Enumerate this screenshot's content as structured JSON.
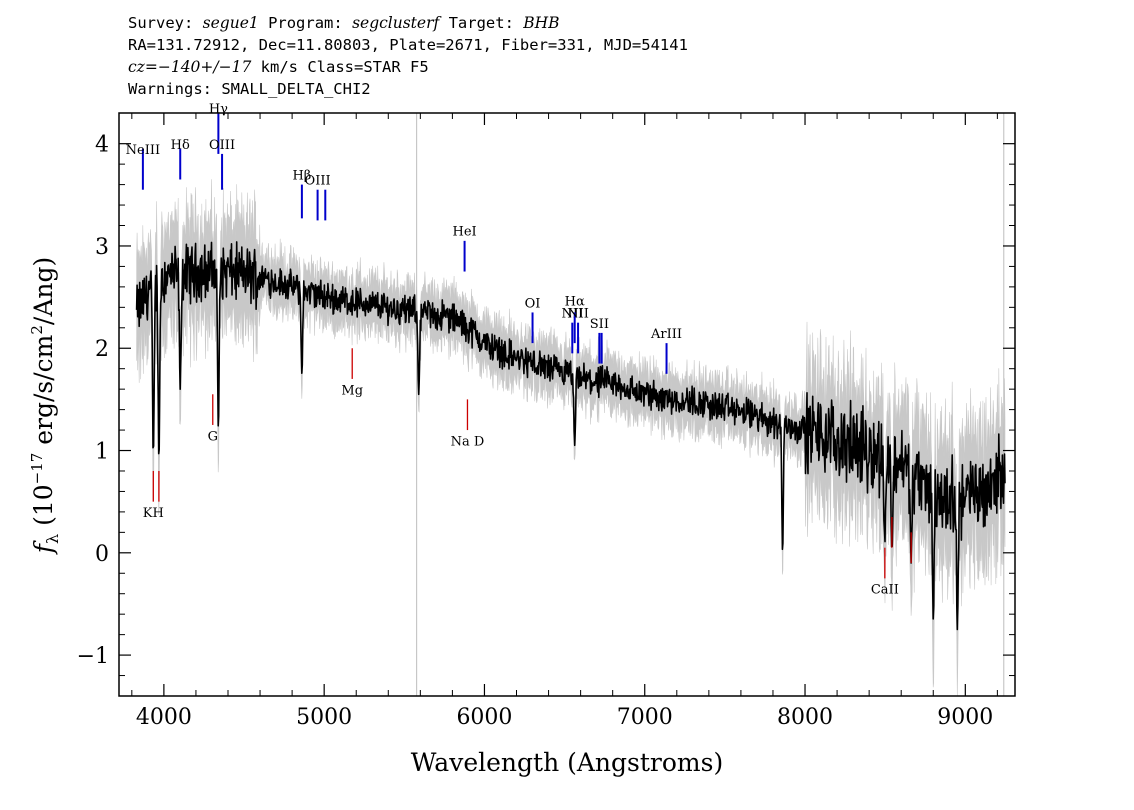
{
  "header": {
    "line1_a": "Survey: ",
    "survey": "segue1",
    "line1_b": " Program: ",
    "program": "segclusterf",
    "line1_c": " Target: ",
    "target": "BHB",
    "line2": "RA=131.72912, Dec=11.80803, Plate=2671, Fiber=331, MJD=54141",
    "line3_a": "cz=",
    "cz": "−140+/−17",
    "line3_b": " km/s Class=STAR F5",
    "line4": "Warnings: SMALL_DELTA_CHI2"
  },
  "chart_data": {
    "type": "line",
    "xlabel": "Wavelength (Angstroms)",
    "ylabel_prefix": "f",
    "ylabel_sub": "λ",
    "ylabel_main": " (10",
    "ylabel_exp": "−17",
    "ylabel_mid": " erg/s/cm",
    "ylabel_exp2": "2",
    "ylabel_end": "/Ang)",
    "xlim": [
      3720,
      9310
    ],
    "ylim": [
      -1.4,
      4.3
    ],
    "xticks": [
      4000,
      5000,
      6000,
      7000,
      8000,
      9000
    ],
    "xtick_labels": [
      "4000",
      "5000",
      "6000",
      "7000",
      "8000",
      "9000"
    ],
    "yticks": [
      -1,
      0,
      1,
      2,
      3,
      4
    ],
    "ytick_labels": [
      "−1",
      "0",
      "1",
      "2",
      "3",
      "4"
    ],
    "continuum": {
      "x": [
        3830,
        3900,
        4000,
        4200,
        4400,
        4600,
        4800,
        5000,
        5200,
        5400,
        5600,
        5800,
        5900,
        6000,
        6200,
        6400,
        6600,
        6800,
        7000,
        7200,
        7400,
        7600,
        7800,
        8000,
        8200,
        8400,
        8600,
        8800,
        9000,
        9100,
        9200
      ],
      "y": [
        2.35,
        2.55,
        2.7,
        2.75,
        2.75,
        2.7,
        2.6,
        2.5,
        2.45,
        2.4,
        2.35,
        2.3,
        2.2,
        2.05,
        1.9,
        1.8,
        1.7,
        1.65,
        1.55,
        1.5,
        1.45,
        1.38,
        1.28,
        1.2,
        1.1,
        1.0,
        0.9,
        0.55,
        0.55,
        0.6,
        0.75
      ]
    },
    "absorption_dips": [
      {
        "x": 3934,
        "y": 0.95
      },
      {
        "x": 3969,
        "y": 0.9
      },
      {
        "x": 4102,
        "y": 1.6
      },
      {
        "x": 4340,
        "y": 1.2
      },
      {
        "x": 4861,
        "y": 1.75
      },
      {
        "x": 5590,
        "y": 1.55
      },
      {
        "x": 6563,
        "y": 1.05
      },
      {
        "x": 7860,
        "y": 0.0
      },
      {
        "x": 8498,
        "y": 0.1
      },
      {
        "x": 8542,
        "y": 0.0
      },
      {
        "x": 8662,
        "y": -0.1
      },
      {
        "x": 8800,
        "y": -0.65
      },
      {
        "x": 8950,
        "y": -0.75
      }
    ],
    "emission_lines": [
      {
        "name": "NeIII",
        "x": 3869,
        "y_bottom": 3.55,
        "y_top": 3.95,
        "label_y": 3.9,
        "color": "#0000cc"
      },
      {
        "name": "Hδ",
        "x": 4102,
        "y_bottom": 3.65,
        "y_top": 3.95,
        "label_y": 3.95,
        "color": "#0000cc"
      },
      {
        "name": "Hγ",
        "x": 4340,
        "y_bottom": 3.9,
        "y_top": 4.3,
        "label_y": 4.3,
        "color": "#0000cc"
      },
      {
        "name": "OIII",
        "x": 4363,
        "y_bottom": 3.55,
        "y_top": 3.9,
        "label_y": 3.95,
        "color": "#0000cc"
      },
      {
        "name": "Hβ",
        "x": 4861,
        "y_bottom": 3.27,
        "y_top": 3.6,
        "label_y": 3.65,
        "color": "#0000cc"
      },
      {
        "name": "OIII",
        "x": 4959,
        "y_bottom": 3.25,
        "y_top": 3.55,
        "label_y": 3.6,
        "color": "#0000cc"
      },
      {
        "name": "",
        "x": 5007,
        "y_bottom": 3.25,
        "y_top": 3.55,
        "label_y": 3.6,
        "color": "#0000cc"
      },
      {
        "name": "HeI",
        "x": 5876,
        "y_bottom": 2.75,
        "y_top": 3.05,
        "label_y": 3.1,
        "color": "#0000cc"
      },
      {
        "name": "OI",
        "x": 6300,
        "y_bottom": 2.05,
        "y_top": 2.35,
        "label_y": 2.4,
        "color": "#0000cc"
      },
      {
        "name": "NII",
        "x": 6548,
        "y_bottom": 1.95,
        "y_top": 2.25,
        "label_y": 2.3,
        "color": "#0000cc"
      },
      {
        "name": "Hα",
        "x": 6563,
        "y_bottom": 2.05,
        "y_top": 2.35,
        "label_y": 2.42,
        "color": "#0000cc"
      },
      {
        "name": "NII",
        "x": 6584,
        "y_bottom": 1.95,
        "y_top": 2.25,
        "label_y": 2.3,
        "color": "#0000cc"
      },
      {
        "name": "SII",
        "x": 6717,
        "y_bottom": 1.85,
        "y_top": 2.15,
        "label_y": 2.2,
        "color": "#0000cc"
      },
      {
        "name": "",
        "x": 6731,
        "y_bottom": 1.85,
        "y_top": 2.15,
        "label_y": 2.2,
        "color": "#0000cc"
      },
      {
        "name": "ArIII",
        "x": 7136,
        "y_bottom": 1.75,
        "y_top": 2.05,
        "label_y": 2.1,
        "color": "#0000cc"
      }
    ],
    "absorption_lines": [
      {
        "name": "KH",
        "x": 3934,
        "y_bottom": 0.5,
        "y_top": 0.8,
        "label_y": 0.35,
        "color": "#cc0000"
      },
      {
        "name": "",
        "x": 3969,
        "y_bottom": 0.5,
        "y_top": 0.8,
        "label_y": 0.35,
        "color": "#cc0000"
      },
      {
        "name": "G",
        "x": 4305,
        "y_bottom": 1.25,
        "y_top": 1.55,
        "label_y": 1.1,
        "color": "#cc0000"
      },
      {
        "name": "Mg",
        "x": 5175,
        "y_bottom": 1.7,
        "y_top": 2.0,
        "label_y": 1.55,
        "color": "#cc0000"
      },
      {
        "name": "Na D",
        "x": 5894,
        "y_bottom": 1.2,
        "y_top": 1.5,
        "label_y": 1.05,
        "color": "#cc0000"
      },
      {
        "name": "CaII",
        "x": 8498,
        "y_bottom": -0.25,
        "y_top": 0.05,
        "label_y": -0.4,
        "color": "#cc0000"
      },
      {
        "name": "",
        "x": 8542,
        "y_bottom": 0.05,
        "y_top": 0.35,
        "label_y": -0.4,
        "color": "#cc0000"
      },
      {
        "name": "",
        "x": 8662,
        "y_bottom": -0.1,
        "y_top": 0.2,
        "label_y": -0.4,
        "color": "#cc0000"
      }
    ],
    "sky_lines": [
      5577,
      9240
    ],
    "colors": {
      "flux": "#000000",
      "noise": "#c8c8c8",
      "emission": "#0000cc",
      "absorption": "#cc0000"
    }
  }
}
